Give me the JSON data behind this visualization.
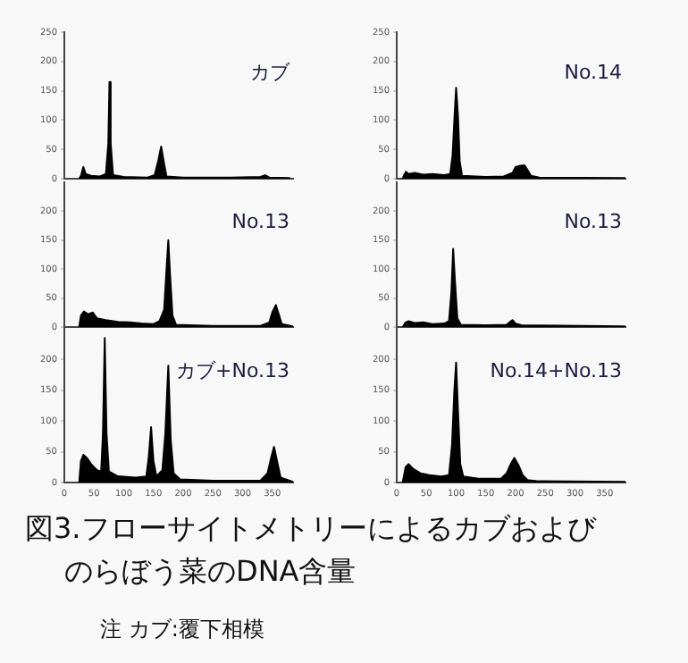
{
  "chart_data": [
    {
      "type": "area",
      "title": "図3.フローサイトメトリーによるカブおよびのらぼう菜のDNA含量",
      "annotations": [
        "注 カブ:覆下相模"
      ],
      "xlim": [
        0,
        385
      ],
      "ylim": [
        0,
        250
      ],
      "yticks": [
        0,
        50,
        100,
        150,
        200,
        250
      ],
      "tick_labels": "y",
      "legend": false,
      "grid": false,
      "series": [
        {
          "name": "カブ",
          "color": "#000000",
          "x": [
            25,
            28,
            32,
            36,
            45,
            60,
            70,
            74,
            76,
            78,
            82,
            100,
            140,
            152,
            158,
            163,
            168,
            172,
            200,
            280,
            330,
            338,
            345,
            380
          ],
          "values": [
            0,
            5,
            20,
            8,
            5,
            4,
            8,
            60,
            165,
            60,
            6,
            3,
            2,
            6,
            30,
            55,
            25,
            4,
            2,
            2,
            3,
            6,
            2,
            1
          ]
        }
      ]
    },
    {
      "type": "area",
      "xlim": [
        0,
        385
      ],
      "ylim": [
        0,
        250
      ],
      "yticks": [
        0,
        50,
        100,
        150,
        200,
        250
      ],
      "tick_labels": "y",
      "legend": false,
      "grid": false,
      "series": [
        {
          "name": "No.14",
          "color": "#000000",
          "x": [
            10,
            13,
            15,
            20,
            30,
            45,
            60,
            80,
            90,
            94,
            98,
            100,
            103,
            106,
            110,
            150,
            180,
            195,
            200,
            208,
            215,
            220,
            226,
            240,
            385
          ],
          "values": [
            0,
            8,
            12,
            8,
            10,
            7,
            8,
            6,
            8,
            40,
            120,
            155,
            110,
            30,
            5,
            3,
            4,
            10,
            20,
            22,
            23,
            15,
            5,
            2,
            1
          ]
        }
      ]
    },
    {
      "type": "area",
      "xlim": [
        0,
        385
      ],
      "ylim": [
        0,
        250
      ],
      "yticks": [
        0,
        50,
        100,
        150,
        200
      ],
      "tick_labels": "y",
      "legend": false,
      "grid": false,
      "series": [
        {
          "name": "No.13",
          "color": "#000000",
          "x": [
            25,
            28,
            33,
            40,
            48,
            55,
            70,
            90,
            110,
            130,
            150,
            160,
            168,
            172,
            175,
            178,
            182,
            188,
            250,
            330,
            345,
            350,
            356,
            360,
            366,
            385
          ],
          "values": [
            0,
            20,
            27,
            22,
            25,
            15,
            12,
            9,
            8,
            6,
            5,
            10,
            30,
            100,
            150,
            90,
            20,
            4,
            2,
            2,
            8,
            25,
            38,
            25,
            5,
            1
          ]
        }
      ]
    },
    {
      "type": "area",
      "xlim": [
        0,
        385
      ],
      "ylim": [
        0,
        250
      ],
      "yticks": [
        0,
        50,
        100,
        150,
        200
      ],
      "tick_labels": "y",
      "legend": false,
      "grid": false,
      "series": [
        {
          "name": "No.13",
          "color": "#000000",
          "x": [
            10,
            15,
            20,
            30,
            45,
            60,
            80,
            88,
            92,
            95,
            98,
            102,
            108,
            150,
            185,
            192,
            195,
            200,
            210,
            385
          ],
          "values": [
            0,
            8,
            10,
            7,
            8,
            5,
            6,
            10,
            60,
            135,
            80,
            15,
            4,
            3,
            4,
            10,
            12,
            6,
            3,
            1
          ]
        }
      ]
    },
    {
      "type": "area",
      "xlim": [
        0,
        385
      ],
      "xticks": [
        0,
        50,
        100,
        150,
        200,
        250,
        300,
        350
      ],
      "ylim": [
        0,
        250
      ],
      "yticks": [
        0,
        50,
        100,
        150,
        200
      ],
      "legend": false,
      "grid": false,
      "series": [
        {
          "name": "カブ+No.13",
          "color": "#000000",
          "x": [
            25,
            28,
            32,
            38,
            45,
            55,
            62,
            65,
            68,
            71,
            75,
            90,
            120,
            138,
            142,
            146,
            150,
            155,
            165,
            170,
            175,
            179,
            184,
            195,
            250,
            330,
            342,
            348,
            353,
            358,
            364,
            385
          ],
          "values": [
            0,
            35,
            45,
            40,
            30,
            20,
            18,
            80,
            235,
            80,
            18,
            10,
            8,
            10,
            40,
            90,
            35,
            10,
            20,
            80,
            190,
            70,
            15,
            5,
            3,
            3,
            15,
            40,
            58,
            35,
            8,
            1
          ]
        }
      ]
    },
    {
      "type": "area",
      "xlim": [
        0,
        385
      ],
      "xticks": [
        0,
        50,
        100,
        150,
        200,
        250,
        300,
        350
      ],
      "ylim": [
        0,
        250
      ],
      "yticks": [
        0,
        50,
        100,
        150,
        200
      ],
      "legend": false,
      "grid": false,
      "series": [
        {
          "name": "No.14+No.13",
          "color": "#000000",
          "x": [
            10,
            15,
            20,
            28,
            40,
            55,
            75,
            88,
            93,
            97,
            100,
            103,
            107,
            112,
            140,
            175,
            185,
            192,
            198,
            205,
            212,
            220,
            240,
            385
          ],
          "values": [
            0,
            25,
            30,
            22,
            15,
            12,
            10,
            12,
            60,
            150,
            195,
            120,
            30,
            10,
            6,
            6,
            15,
            30,
            40,
            28,
            12,
            4,
            2,
            1
          ]
        }
      ]
    }
  ]
}
